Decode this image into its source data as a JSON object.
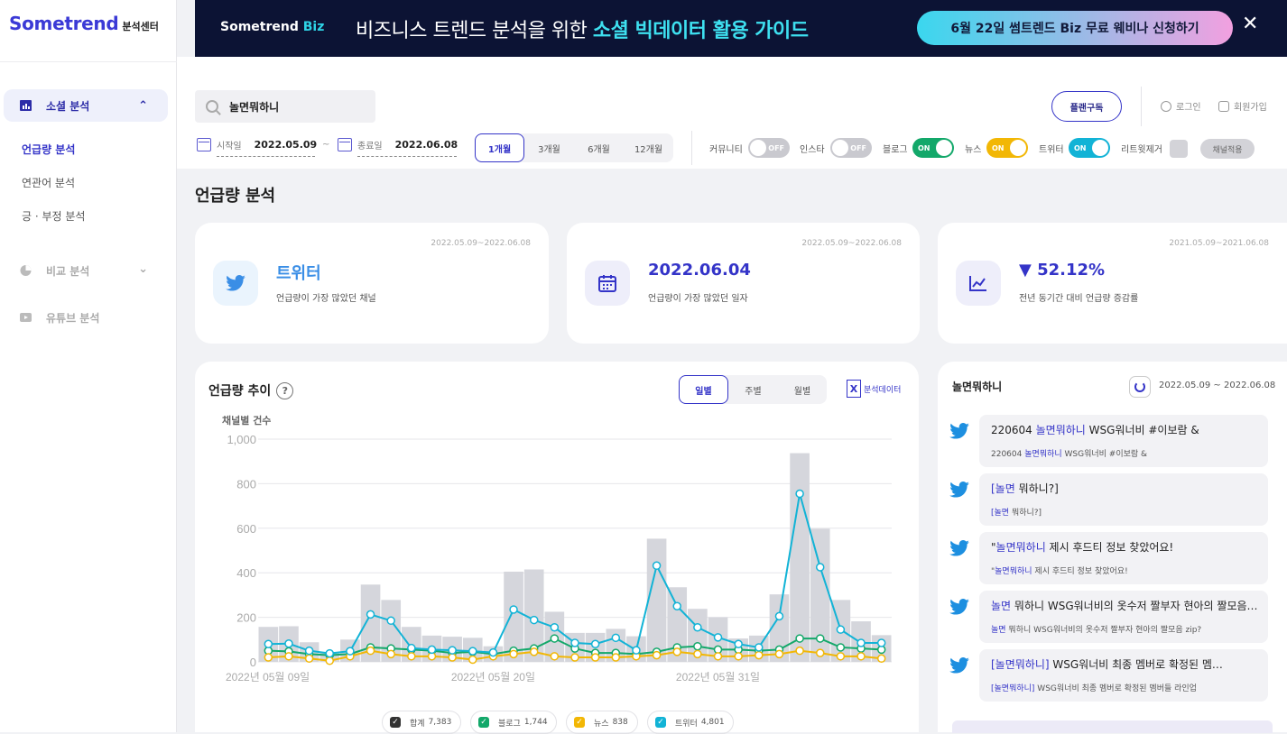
{
  "logo": {
    "main": "Sometrend",
    "sub": "분석센터"
  },
  "banner": {
    "logo_main": "Sometrend",
    "logo_accent": "Biz",
    "text_prefix": "비즈니스 트렌드 분석을 위한 ",
    "text_bold": "소셜 빅데이터 활용 가이드",
    "cta": "6월 22일 썸트렌드 Biz 무료 웨비나 신청하기",
    "close": "✕"
  },
  "sidebar": {
    "groups": [
      {
        "label": "소셜 분석",
        "chev": "⌃"
      },
      {
        "label": "비교 분석",
        "chev": "⌄"
      },
      {
        "label": "유튜브 분석"
      }
    ],
    "items": [
      {
        "label": "언급량 분석"
      },
      {
        "label": "연관어 분석"
      },
      {
        "label": "긍 · 부정 분석"
      }
    ]
  },
  "search": {
    "value": "놀면뭐하니"
  },
  "header": {
    "plan": "플랜구독",
    "login": "로그인",
    "signup": "회원가입"
  },
  "dates": {
    "start_label": "시작일",
    "start": "2022.05.09",
    "tilde": "~",
    "end_label": "종료일",
    "end": "2022.06.08"
  },
  "periods": [
    "1개월",
    "3개월",
    "6개월",
    "12개월"
  ],
  "channels": [
    {
      "label": "커뮤니티",
      "state": "OFF",
      "on": false,
      "color": "#c9c9cf"
    },
    {
      "label": "인스타",
      "state": "OFF",
      "on": false,
      "color": "#c9c9cf"
    },
    {
      "label": "블로그",
      "state": "ON",
      "on": true,
      "color": "#13a86a"
    },
    {
      "label": "뉴스",
      "state": "ON",
      "on": true,
      "color": "#f2b705"
    },
    {
      "label": "트위터",
      "state": "ON",
      "on": true,
      "color": "#12b3d6"
    }
  ],
  "retweet_label": "리트윗제거",
  "apply": "채널적용",
  "page_title": "언급량 분석",
  "cards": [
    {
      "date": "2022.05.09~2022.06.08",
      "main": "트위터",
      "sub": "언급량이 가장 많았던 채널",
      "icon": "twitter-icon",
      "color": "#3a8ee6",
      "icbg": "#eaf4fd"
    },
    {
      "date": "2022.05.09~2022.06.08",
      "main": "2022.06.04",
      "sub": "언급량이 가장 많았던 일자",
      "icon": "calendar-icon",
      "color": "#3434c8",
      "icbg": "#eeeefa"
    },
    {
      "date": "2021.05.09~2021.06.08",
      "main": "▼ 52.12%",
      "sub": "전년 동기간 대비 언급량 증감률",
      "icon": "trend-icon",
      "color": "#3434c8",
      "icbg": "#eeeefa"
    }
  ],
  "chart_panel": {
    "title": "언급량 추이",
    "help": "?",
    "gran": [
      "일별",
      "주별",
      "월별"
    ],
    "excel": "분석데이터",
    "ylabel": "채널별 건수"
  },
  "chart_data": {
    "type": "bar",
    "categories": [
      "2022년 05월 09일",
      "",
      "",
      "",
      "",
      "",
      "",
      "",
      "",
      "",
      "",
      "2022년 05월 20일",
      "",
      "",
      "",
      "",
      "",
      "",
      "",
      "",
      "",
      "",
      "2022년 05월 31일",
      "",
      "",
      "",
      "",
      "",
      "",
      "",
      ""
    ],
    "x_tick_labels": [
      "2022년 05월 09일",
      "2022년 05월 20일",
      "2022년 05월 31일"
    ],
    "ylim": [
      0,
      1000
    ],
    "yticks": [
      "1,000",
      "800",
      "600",
      "400",
      "200",
      "0"
    ],
    "series": [
      {
        "name": "합계",
        "color": "#d5d6dc",
        "type": "bar",
        "values": [
          157,
          160,
          88,
          45,
          100,
          347,
          278,
          157,
          118,
          113,
          108,
          70,
          405,
          415,
          225,
          130,
          130,
          148,
          115,
          553,
          335,
          238,
          200,
          105,
          118,
          303,
          937,
          598,
          278,
          182,
          120
        ]
      },
      {
        "name": "블로그",
        "color": "#13a86a",
        "type": "line",
        "values": [
          50,
          47,
          35,
          30,
          35,
          65,
          60,
          55,
          50,
          40,
          45,
          35,
          50,
          60,
          105,
          60,
          40,
          40,
          35,
          45,
          65,
          70,
          55,
          55,
          50,
          55,
          105,
          105,
          65,
          60,
          55
        ]
      },
      {
        "name": "뉴스",
        "color": "#f2b705",
        "type": "line",
        "values": [
          20,
          25,
          15,
          5,
          25,
          50,
          35,
          25,
          25,
          20,
          10,
          25,
          35,
          45,
          25,
          20,
          20,
          20,
          25,
          30,
          45,
          35,
          25,
          25,
          30,
          35,
          50,
          40,
          25,
          25,
          15
        ]
      },
      {
        "name": "트위터",
        "color": "#12b3d6",
        "type": "line",
        "values": [
          80,
          82,
          50,
          38,
          48,
          213,
          185,
          62,
          55,
          52,
          48,
          42,
          235,
          188,
          155,
          85,
          80,
          108,
          52,
          432,
          250,
          155,
          110,
          80,
          65,
          205,
          755,
          425,
          145,
          85,
          85
        ]
      }
    ]
  },
  "legend": [
    {
      "name": "합계",
      "value": "7,383",
      "color": "#333"
    },
    {
      "name": "블로그",
      "value": "1,744",
      "color": "#13a86a"
    },
    {
      "name": "뉴스",
      "value": "838",
      "color": "#f2b705"
    },
    {
      "name": "트위터",
      "value": "4,801",
      "color": "#12b3d6"
    }
  ],
  "feed": {
    "title": "놀면뭐하니",
    "date": "2022.05.09 ~ 2022.06.08",
    "posts": [
      {
        "t1_pre": "220604 ",
        "t1_hl": "놀면뭐하니",
        "t1_post": " WSG워너비 #이보람 &",
        "t2_pre": "220604 ",
        "t2_hl": "놀면뭐하니",
        "t2_post": " WSG워너비 #이보람 &"
      },
      {
        "t1_pre": "",
        "t1_hl": "[놀면",
        "t1_post": " 뭐하니?]",
        "t2_pre": "",
        "t2_hl": "[놀면",
        "t2_post": " 뭐하니?]"
      },
      {
        "t1_pre": "\"",
        "t1_hl": "놀면뭐하니",
        "t1_post": " 제시 후드티 정보 찾았어요!",
        "t2_pre": "\"",
        "t2_hl": "놀면뭐하니",
        "t2_post": " 제시 후드티 정보 찾았어요!"
      },
      {
        "t1_pre": "",
        "t1_hl": "놀면",
        "t1_post": " 뭐하니 WSG워너비의 옷수저 짤부자 현아의 짤모음 zi…",
        "t2_pre": "",
        "t2_hl": "놀면",
        "t2_post": " 뭐하니 WSG워너비의 옷수저 짤부자 현아의 짤모음 zip?"
      },
      {
        "t1_pre": "     ",
        "t1_hl": "[놀면뭐하니]",
        "t1_post": " WSG워너비 최종 멤버로 확정된 멤…",
        "t2_pre": "     ",
        "t2_hl": "[놀면뭐하니]",
        "t2_post": " WSG워너비 최종 멤버로 확정된 멤버들 라인업"
      }
    ]
  }
}
